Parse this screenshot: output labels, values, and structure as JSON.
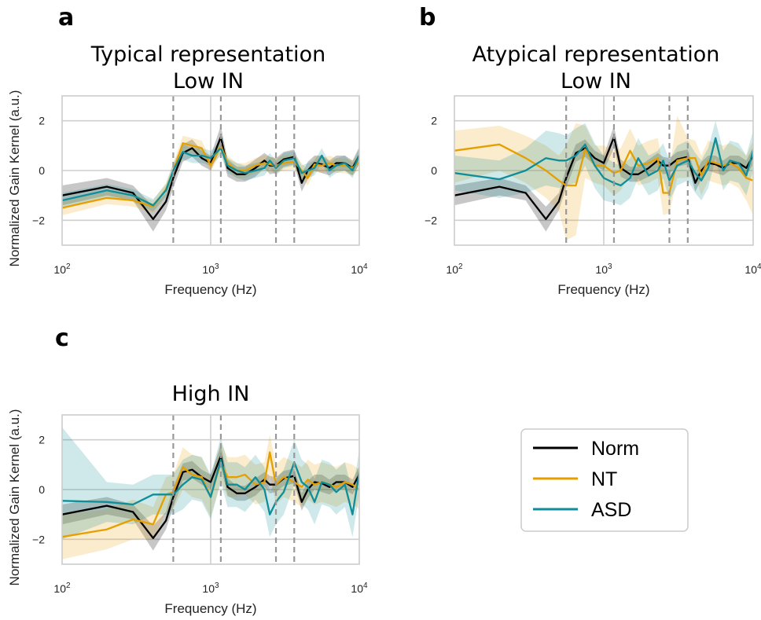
{
  "panels": [
    {
      "letter": "a",
      "title_line1": "Typical representation",
      "title_line2": "Low IN"
    },
    {
      "letter": "b",
      "title_line1": "Atypical representation",
      "title_line2": "Low IN"
    },
    {
      "letter": "c",
      "title_line1": "",
      "title_line2": "High IN"
    }
  ],
  "legend": {
    "items": [
      {
        "label": "Norm",
        "color": "#000000"
      },
      {
        "label": "NT",
        "color": "#E69F00"
      },
      {
        "label": "ASD",
        "color": "#0F8D98"
      }
    ]
  },
  "chart_data": [
    {
      "type": "line",
      "title": "Typical representation Low IN",
      "xlabel": "Frequency (Hz)",
      "ylabel": "Normalized Gain Kernel (a.u.)",
      "xscale": "log",
      "xlim": [
        100,
        10000
      ],
      "ylim": [
        -3,
        3
      ],
      "yticks": [
        -2,
        0,
        2
      ],
      "xtick_labels": [
        "10^2",
        "10^3",
        "10^4"
      ],
      "vlines_dashed": [
        560,
        1170,
        2750,
        3650
      ],
      "vlines_solid": [
        1000
      ],
      "x": [
        100,
        200,
        300,
        410,
        500,
        560,
        650,
        750,
        870,
        1000,
        1170,
        1300,
        1500,
        1700,
        2000,
        2300,
        2500,
        2750,
        3100,
        3650,
        4100,
        4500,
        5000,
        5600,
        6300,
        7000,
        8000,
        9000,
        10000
      ],
      "series": [
        {
          "name": "Norm",
          "values": [
            -1.0,
            -0.65,
            -0.9,
            -1.95,
            -1.25,
            -0.3,
            0.7,
            0.9,
            0.5,
            0.3,
            1.35,
            0.1,
            -0.15,
            -0.15,
            0.1,
            0.4,
            0.2,
            0.2,
            0.45,
            0.55,
            -0.5,
            0.0,
            0.3,
            0.25,
            0.1,
            0.3,
            0.3,
            0.1,
            0.6
          ],
          "lower": [
            -1.4,
            -1.0,
            -1.2,
            -2.45,
            -1.6,
            -0.7,
            0.35,
            0.55,
            0.2,
            0.0,
            0.9,
            -0.25,
            -0.45,
            -0.45,
            -0.25,
            0.1,
            -0.15,
            -0.1,
            0.15,
            0.25,
            -0.85,
            -0.35,
            0.0,
            -0.1,
            -0.2,
            0.0,
            0.0,
            -0.2,
            0.25
          ],
          "upper": [
            -0.6,
            -0.3,
            -0.6,
            -1.45,
            -0.9,
            0.1,
            1.05,
            1.25,
            0.8,
            0.6,
            1.8,
            0.45,
            0.15,
            0.15,
            0.45,
            0.7,
            0.55,
            0.5,
            0.75,
            0.85,
            -0.15,
            0.35,
            0.6,
            0.6,
            0.4,
            0.6,
            0.6,
            0.4,
            0.95
          ]
        },
        {
          "name": "NT",
          "values": [
            -1.5,
            -1.1,
            -1.2,
            -1.45,
            -0.75,
            0.0,
            1.1,
            1.0,
            0.9,
            0.2,
            1.0,
            0.3,
            0.0,
            0.0,
            0.2,
            0.3,
            0.25,
            0.2,
            0.3,
            0.35,
            0.0,
            -0.3,
            0.25,
            0.2,
            0.3,
            0.2,
            0.2,
            0.1,
            0.35
          ],
          "lower": [
            -1.8,
            -1.35,
            -1.45,
            -1.7,
            -1.0,
            -0.3,
            0.8,
            0.7,
            0.6,
            -0.05,
            0.7,
            0.0,
            -0.3,
            -0.3,
            -0.1,
            0.0,
            -0.05,
            -0.1,
            0.0,
            0.05,
            -0.3,
            -0.6,
            -0.05,
            -0.1,
            0.0,
            -0.1,
            -0.1,
            -0.2,
            0.05
          ],
          "upper": [
            -1.2,
            -0.85,
            -0.95,
            -1.2,
            -0.5,
            0.3,
            1.4,
            1.3,
            1.2,
            0.45,
            1.3,
            0.6,
            0.3,
            0.3,
            0.5,
            0.6,
            0.55,
            0.5,
            0.6,
            0.65,
            0.3,
            0.0,
            0.55,
            0.5,
            0.6,
            0.5,
            0.5,
            0.4,
            0.65
          ]
        },
        {
          "name": "ASD",
          "values": [
            -1.2,
            -0.8,
            -1.0,
            -1.4,
            -0.8,
            0.0,
            0.75,
            0.6,
            0.6,
            0.5,
            0.9,
            0.2,
            0.0,
            -0.1,
            0.0,
            0.1,
            0.4,
            0.1,
            0.4,
            0.5,
            -0.1,
            0.0,
            0.1,
            0.6,
            0.0,
            0.2,
            0.3,
            0.0,
            0.6
          ],
          "lower": [
            -1.5,
            -1.05,
            -1.25,
            -1.65,
            -1.05,
            -0.3,
            0.45,
            0.3,
            0.3,
            0.2,
            0.6,
            -0.1,
            -0.3,
            -0.4,
            -0.3,
            -0.2,
            0.1,
            -0.2,
            0.1,
            0.2,
            -0.4,
            -0.3,
            -0.2,
            0.3,
            -0.3,
            -0.1,
            0.0,
            -0.3,
            0.3
          ],
          "upper": [
            -0.9,
            -0.55,
            -0.75,
            -1.15,
            -0.55,
            0.3,
            1.05,
            0.9,
            0.9,
            0.8,
            1.2,
            0.5,
            0.3,
            0.2,
            0.3,
            0.4,
            0.7,
            0.4,
            0.7,
            0.8,
            0.2,
            0.3,
            0.4,
            0.9,
            0.3,
            0.5,
            0.6,
            0.3,
            0.9
          ]
        }
      ]
    },
    {
      "type": "line",
      "title": "Atypical representation Low IN",
      "xlabel": "Frequency (Hz)",
      "ylabel": "",
      "xscale": "log",
      "xlim": [
        100,
        10000
      ],
      "ylim": [
        -3,
        3
      ],
      "yticks": [
        -2,
        0,
        2
      ],
      "xtick_labels": [
        "10^2",
        "10^3",
        "10^4"
      ],
      "vlines_dashed": [
        560,
        1170,
        2750,
        3650
      ],
      "vlines_solid": [
        1000
      ],
      "x": [
        100,
        200,
        300,
        410,
        500,
        560,
        650,
        750,
        870,
        1000,
        1170,
        1300,
        1500,
        1700,
        2000,
        2300,
        2500,
        2750,
        3100,
        3650,
        4100,
        4500,
        5000,
        5600,
        6300,
        7000,
        8000,
        9000,
        10000
      ],
      "series": [
        {
          "name": "Norm",
          "values": [
            -1.0,
            -0.65,
            -0.9,
            -1.95,
            -1.25,
            -0.3,
            0.7,
            0.9,
            0.5,
            0.3,
            1.35,
            0.1,
            -0.15,
            -0.15,
            0.1,
            0.4,
            0.2,
            0.2,
            0.45,
            0.55,
            -0.5,
            0.0,
            0.3,
            0.25,
            0.1,
            0.3,
            0.3,
            0.1,
            0.6
          ],
          "lower": [
            -1.4,
            -1.0,
            -1.2,
            -2.45,
            -1.6,
            -0.7,
            0.35,
            0.55,
            0.2,
            0.0,
            0.9,
            -0.25,
            -0.45,
            -0.45,
            -0.25,
            0.1,
            -0.15,
            -0.1,
            0.15,
            0.25,
            -0.85,
            -0.35,
            0.0,
            -0.1,
            -0.2,
            0.0,
            0.0,
            -0.2,
            0.25
          ],
          "upper": [
            -0.6,
            -0.3,
            -0.6,
            -1.45,
            -0.9,
            0.1,
            1.05,
            1.25,
            0.8,
            0.6,
            1.8,
            0.45,
            0.15,
            0.15,
            0.45,
            0.7,
            0.55,
            0.5,
            0.75,
            0.85,
            -0.15,
            0.35,
            0.6,
            0.6,
            0.4,
            0.6,
            0.6,
            0.4,
            0.95
          ]
        },
        {
          "name": "NT",
          "values": [
            0.8,
            1.05,
            0.5,
            0.0,
            -0.4,
            -0.6,
            -0.6,
            0.85,
            0.2,
            0.2,
            -0.1,
            0.0,
            0.8,
            0.2,
            0.3,
            0.5,
            -0.9,
            -0.9,
            0.4,
            0.5,
            0.5,
            -0.2,
            0.4,
            0.3,
            0.2,
            0.3,
            0.1,
            -0.3,
            -0.4
          ],
          "lower": [
            -0.5,
            0.0,
            -0.5,
            -1.1,
            -1.6,
            -2.8,
            -2.6,
            -0.3,
            -0.5,
            -0.6,
            -1.0,
            -0.8,
            -0.1,
            -0.6,
            -0.5,
            -0.3,
            -1.8,
            -1.7,
            -0.3,
            -0.3,
            -0.2,
            -1.0,
            -0.4,
            -0.5,
            -0.6,
            -0.5,
            -0.7,
            -1.2,
            -1.8
          ],
          "upper": [
            1.6,
            1.8,
            1.4,
            1.0,
            0.6,
            1.0,
            1.9,
            1.8,
            1.0,
            1.0,
            0.8,
            0.9,
            1.7,
            1.0,
            1.2,
            1.3,
            0.1,
            0.0,
            2.2,
            1.3,
            1.2,
            0.6,
            1.2,
            1.1,
            1.0,
            1.1,
            0.9,
            0.6,
            1.2
          ]
        },
        {
          "name": "ASD",
          "values": [
            -0.1,
            -0.35,
            0.0,
            0.5,
            0.4,
            0.4,
            0.6,
            1.05,
            0.2,
            -0.3,
            -0.5,
            -0.6,
            -0.3,
            0.5,
            -0.2,
            0.0,
            0.4,
            -0.4,
            0.2,
            0.4,
            -0.1,
            -0.4,
            0.1,
            1.3,
            0.0,
            0.4,
            0.3,
            -0.2,
            0.8
          ],
          "lower": [
            -0.8,
            -1.1,
            -0.9,
            -0.6,
            -0.7,
            -0.6,
            -0.5,
            0.2,
            -0.7,
            -1.2,
            -1.3,
            -1.4,
            -1.1,
            -0.3,
            -1.0,
            -0.8,
            -0.3,
            -1.2,
            -0.6,
            -0.4,
            -0.9,
            -1.2,
            -0.7,
            0.5,
            -0.8,
            -0.4,
            -0.5,
            -1.0,
            0.0
          ],
          "upper": [
            0.6,
            0.4,
            0.9,
            1.6,
            1.5,
            1.4,
            1.7,
            1.9,
            1.1,
            0.6,
            0.3,
            0.2,
            0.5,
            1.3,
            0.6,
            0.8,
            1.1,
            0.4,
            1.0,
            1.2,
            0.7,
            0.4,
            0.9,
            2.0,
            0.8,
            1.2,
            1.1,
            0.6,
            1.6
          ]
        }
      ]
    },
    {
      "type": "line",
      "title": "High IN",
      "xlabel": "Frequency (Hz)",
      "ylabel": "Normalized Gain Kernel (a.u.)",
      "xscale": "log",
      "xlim": [
        100,
        10000
      ],
      "ylim": [
        -3,
        3
      ],
      "yticks": [
        -2,
        0,
        2
      ],
      "xtick_labels": [
        "10^2",
        "10^3",
        "10^4"
      ],
      "vlines_dashed": [
        560,
        1170,
        2750,
        3650
      ],
      "vlines_solid": [
        1000
      ],
      "x": [
        100,
        200,
        300,
        410,
        500,
        560,
        650,
        750,
        870,
        1000,
        1170,
        1300,
        1500,
        1700,
        2000,
        2300,
        2500,
        2750,
        3100,
        3650,
        4100,
        4500,
        5000,
        5600,
        6300,
        7000,
        8000,
        9000,
        10000
      ],
      "series": [
        {
          "name": "Norm",
          "values": [
            -1.0,
            -0.65,
            -0.9,
            -1.95,
            -1.25,
            -0.3,
            0.7,
            0.8,
            0.5,
            0.3,
            1.35,
            0.1,
            -0.15,
            -0.15,
            0.1,
            0.4,
            0.2,
            0.2,
            0.45,
            0.55,
            -0.5,
            0.0,
            0.3,
            0.25,
            0.1,
            0.3,
            0.3,
            0.1,
            0.6
          ],
          "lower": [
            -1.4,
            -1.0,
            -1.2,
            -2.45,
            -1.6,
            -0.7,
            0.35,
            0.45,
            0.2,
            0.0,
            0.9,
            -0.25,
            -0.45,
            -0.45,
            -0.25,
            0.1,
            -0.15,
            -0.1,
            0.15,
            0.25,
            -0.85,
            -0.35,
            0.0,
            -0.1,
            -0.2,
            0.0,
            0.0,
            -0.2,
            0.25
          ],
          "upper": [
            -0.6,
            -0.3,
            -0.6,
            -1.45,
            -0.9,
            0.1,
            1.05,
            1.15,
            0.8,
            0.6,
            1.8,
            0.45,
            0.15,
            0.15,
            0.45,
            0.7,
            0.55,
            0.5,
            0.75,
            0.85,
            -0.15,
            0.35,
            0.6,
            0.6,
            0.4,
            0.6,
            0.6,
            0.4,
            0.95
          ]
        },
        {
          "name": "NT",
          "values": [
            -1.9,
            -1.6,
            -1.2,
            -1.4,
            -0.2,
            -0.1,
            0.9,
            0.6,
            0.5,
            -0.3,
            1.1,
            0.5,
            0.5,
            0.6,
            0.2,
            0.3,
            1.5,
            0.2,
            0.5,
            0.3,
            0.1,
            0.4,
            0.2,
            0.3,
            0.2,
            0.1,
            0.3,
            0.2,
            0.0
          ],
          "lower": [
            -2.8,
            -2.4,
            -2.0,
            -2.0,
            -0.9,
            -0.8,
            0.0,
            -0.3,
            -0.4,
            -1.1,
            0.3,
            -0.3,
            -0.3,
            -0.2,
            -0.6,
            -0.5,
            0.6,
            -0.6,
            -0.3,
            -0.5,
            -0.7,
            -0.4,
            -0.6,
            -0.5,
            -0.6,
            -0.7,
            -0.5,
            -0.6,
            -0.8
          ],
          "upper": [
            -1.0,
            -0.8,
            -0.4,
            -0.7,
            0.5,
            0.6,
            1.7,
            1.4,
            1.3,
            0.5,
            1.9,
            1.3,
            1.3,
            1.4,
            1.0,
            1.1,
            2.2,
            1.0,
            1.3,
            1.1,
            0.9,
            1.2,
            1.0,
            1.1,
            1.0,
            0.9,
            1.1,
            1.0,
            0.8
          ]
        },
        {
          "name": "ASD",
          "values": [
            -0.45,
            -0.5,
            -0.6,
            -0.2,
            -0.2,
            -0.2,
            0.2,
            0.5,
            0.4,
            -0.3,
            1.2,
            0.2,
            0.2,
            0.0,
            0.5,
            0.0,
            -1.0,
            -0.5,
            -0.1,
            1.1,
            0.3,
            0.1,
            -0.5,
            0.3,
            0.2,
            -0.1,
            0.2,
            -1.0,
            0.7
          ],
          "lower": [
            -2.0,
            -1.3,
            -1.4,
            -1.0,
            -1.0,
            -1.0,
            -0.8,
            -0.4,
            -0.5,
            -1.2,
            0.3,
            -0.7,
            -0.7,
            -0.9,
            -0.4,
            -0.9,
            -1.9,
            -1.4,
            -1.0,
            0.2,
            -0.6,
            -0.8,
            -1.4,
            -0.6,
            -0.7,
            -1.0,
            -0.7,
            -1.9,
            -0.2
          ],
          "upper": [
            2.5,
            0.3,
            0.2,
            0.6,
            0.6,
            0.6,
            1.2,
            1.4,
            1.3,
            0.6,
            2.1,
            1.1,
            1.1,
            0.9,
            1.4,
            0.9,
            -0.1,
            0.4,
            0.8,
            2.0,
            1.2,
            1.0,
            0.4,
            1.2,
            1.1,
            0.8,
            1.1,
            -0.1,
            1.6
          ]
        }
      ]
    }
  ]
}
